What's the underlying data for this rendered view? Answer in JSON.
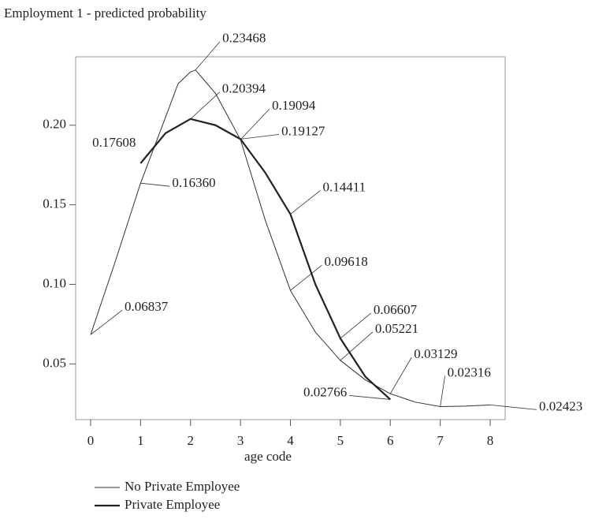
{
  "chart_data": {
    "type": "line",
    "title": "Employment 1 - predicted probability",
    "x_label": "age code",
    "xlim": [
      -0.3,
      8.3
    ],
    "xticks": [
      0,
      1,
      2,
      3,
      4,
      5,
      6,
      7,
      8
    ],
    "ylim": [
      0.015,
      0.243
    ],
    "yticks": [
      {
        "value": 0.05,
        "label": "0.05"
      },
      {
        "value": 0.1,
        "label": "0.10"
      },
      {
        "value": 0.15,
        "label": "0.15"
      },
      {
        "value": 0.2,
        "label": "0.20"
      }
    ],
    "series": [
      {
        "name": "No Private Employee",
        "color": "#333333",
        "x": [
          0,
          0.5,
          1,
          1.5,
          1.75,
          2,
          2.1,
          2.5,
          3,
          3.5,
          4,
          4.5,
          5,
          5.5,
          6,
          6.5,
          7,
          7.5,
          8
        ],
        "values": [
          0.06837,
          0.115,
          0.1636,
          0.205,
          0.226,
          0.2335,
          0.23468,
          0.22,
          0.19094,
          0.14,
          0.09618,
          0.07,
          0.05221,
          0.04,
          0.03129,
          0.026,
          0.02316,
          0.0235,
          0.02423
        ],
        "value_labels": [
          "0.06837",
          null,
          "0.16360",
          null,
          null,
          null,
          "0.23468",
          null,
          "0.19094",
          null,
          "0.09618",
          null,
          "0.05221",
          null,
          "0.03129",
          null,
          "0.02316",
          null,
          "0.02423"
        ]
      },
      {
        "name": "Private Employee",
        "color": "#222222",
        "x": [
          1,
          1.5,
          2,
          2.5,
          3,
          3.5,
          4,
          4.5,
          5,
          5.5,
          6
        ],
        "values": [
          0.17608,
          0.195,
          0.20394,
          0.2,
          0.19127,
          0.17,
          0.14411,
          0.1,
          0.06607,
          0.042,
          0.02766
        ],
        "value_labels": [
          "0.17608",
          null,
          "0.20394",
          null,
          "0.19127",
          null,
          "0.14411",
          null,
          "0.06607",
          null,
          "0.02766"
        ]
      }
    ]
  }
}
